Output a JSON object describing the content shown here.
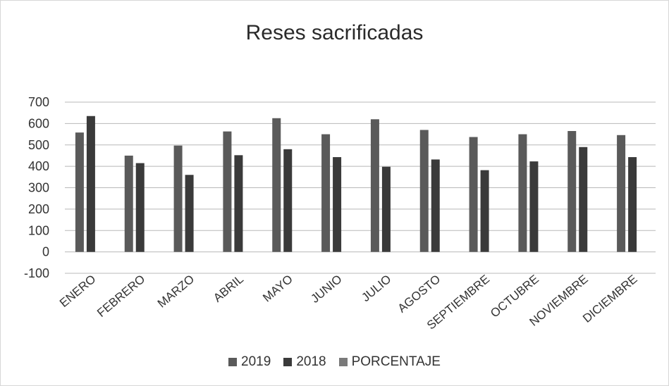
{
  "chart_data": {
    "type": "bar",
    "title": "Reses sacrificadas",
    "categories": [
      "ENERO",
      "FEBRERO",
      "MARZO",
      "ABRIL",
      "MAYO",
      "JUNIO",
      "JULIO",
      "AGOSTO",
      "SEPTIEMBRE",
      "OCTUBRE",
      "NOVIEMBRE",
      "DICIEMBRE"
    ],
    "series": [
      {
        "name": "2019",
        "color": "#5a5a5a",
        "values": [
          558,
          450,
          497,
          563,
          625,
          550,
          620,
          570,
          537,
          550,
          565,
          546
        ]
      },
      {
        "name": "2018",
        "color": "#3a3a3a",
        "values": [
          635,
          415,
          360,
          452,
          480,
          443,
          398,
          432,
          382,
          423,
          490,
          443
        ]
      },
      {
        "name": "PORCENTAJE",
        "color": "#7a7a7a",
        "values": [
          0,
          0,
          0,
          0,
          0,
          0,
          0,
          0,
          0,
          0,
          0,
          0
        ]
      }
    ],
    "y_ticks": [
      700,
      600,
      500,
      400,
      300,
      200,
      100,
      0,
      -100
    ],
    "ylim": [
      -100,
      700
    ],
    "grid": true,
    "legend_position": "bottom"
  }
}
